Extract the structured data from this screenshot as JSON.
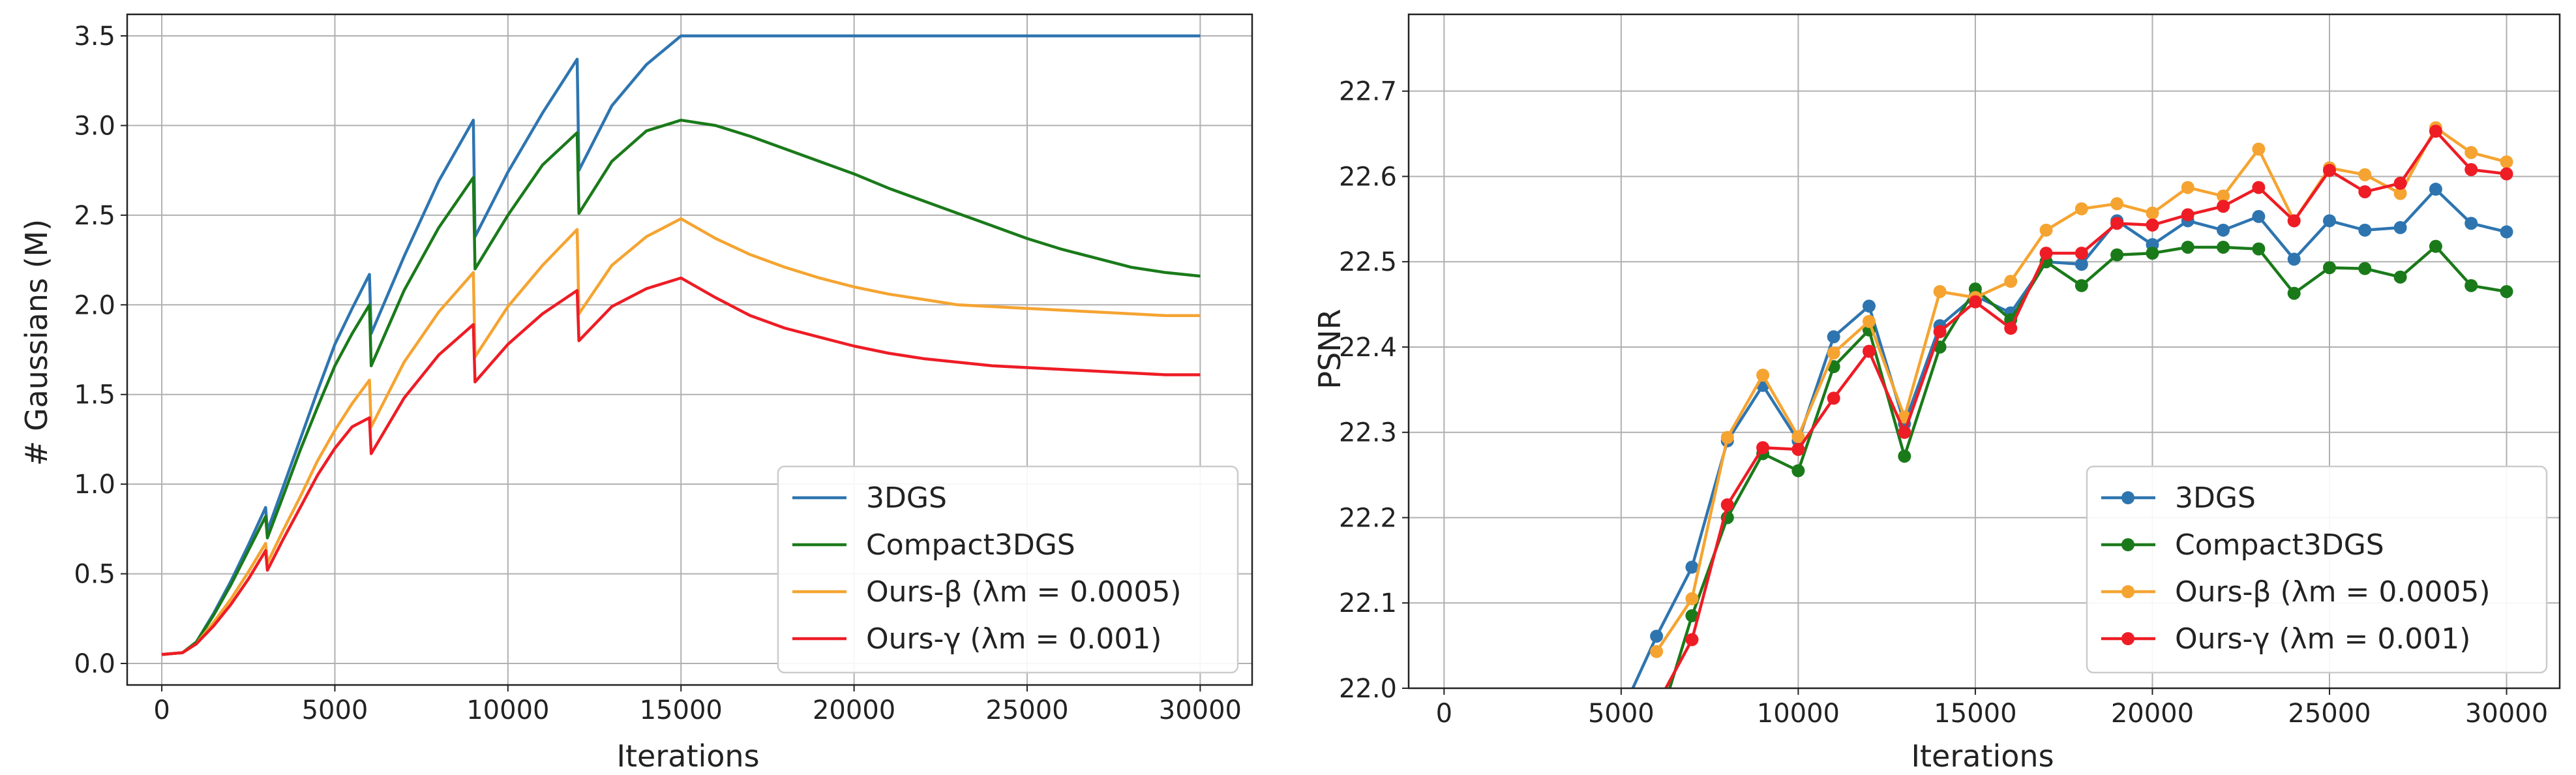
{
  "chart_data": [
    {
      "type": "line",
      "xlabel": "Iterations",
      "ylabel": "# Gaussians (M)",
      "xlim": [
        -1000,
        31500
      ],
      "ylim": [
        -0.12,
        3.62
      ],
      "xticks": [
        0,
        5000,
        10000,
        15000,
        20000,
        25000,
        30000
      ],
      "xtick_labels": [
        "0",
        "5000",
        "10000",
        "15000",
        "20000",
        "25000",
        "30000"
      ],
      "yticks": [
        0.0,
        0.5,
        1.0,
        1.5,
        2.0,
        2.5,
        3.0,
        3.5
      ],
      "ytick_labels": [
        "0.0",
        "0.5",
        "1.0",
        "1.5",
        "2.0",
        "2.5",
        "3.0",
        "3.5"
      ],
      "grid": true,
      "legend_position": "lower-right",
      "series": [
        {
          "name": "3DGS",
          "color": "#2e75b0",
          "x": [
            0,
            600,
            1000,
            1500,
            2000,
            2500,
            3000,
            3050,
            3500,
            4000,
            4500,
            5000,
            5500,
            6000,
            6050,
            7000,
            8000,
            9000,
            9050,
            10000,
            11000,
            12000,
            12050,
            13000,
            14000,
            15000,
            20000,
            25000,
            30000
          ],
          "y": [
            0.05,
            0.06,
            0.12,
            0.28,
            0.46,
            0.66,
            0.87,
            0.74,
            0.98,
            1.25,
            1.52,
            1.78,
            1.98,
            2.17,
            1.84,
            2.27,
            2.69,
            3.03,
            2.38,
            2.74,
            3.07,
            3.37,
            2.75,
            3.11,
            3.34,
            3.5,
            3.5,
            3.5,
            3.5
          ]
        },
        {
          "name": "Compact3DGS",
          "color": "#1a7a1a",
          "x": [
            0,
            600,
            1000,
            1500,
            2000,
            2500,
            3000,
            3050,
            3500,
            4000,
            4500,
            5000,
            5500,
            6000,
            6050,
            7000,
            8000,
            9000,
            9050,
            10000,
            11000,
            12000,
            12050,
            13000,
            14000,
            15000,
            16000,
            17000,
            18000,
            19000,
            20000,
            21000,
            22000,
            23000,
            24000,
            25000,
            26000,
            27000,
            28000,
            29000,
            30000
          ],
          "y": [
            0.05,
            0.06,
            0.12,
            0.27,
            0.44,
            0.63,
            0.82,
            0.7,
            0.93,
            1.19,
            1.43,
            1.66,
            1.84,
            2.0,
            1.66,
            2.08,
            2.43,
            2.71,
            2.2,
            2.5,
            2.78,
            2.96,
            2.51,
            2.8,
            2.97,
            3.03,
            3.0,
            2.94,
            2.87,
            2.8,
            2.73,
            2.65,
            2.58,
            2.51,
            2.44,
            2.37,
            2.31,
            2.26,
            2.21,
            2.18,
            2.16
          ]
        },
        {
          "name": "Ours-β (λm = 0.0005)",
          "color": "#f5a431",
          "x": [
            0,
            600,
            1000,
            1500,
            2000,
            2500,
            3000,
            3050,
            3500,
            4000,
            4500,
            5000,
            5500,
            6000,
            6050,
            7000,
            8000,
            9000,
            9050,
            10000,
            11000,
            12000,
            12050,
            13000,
            14000,
            15000,
            16000,
            17000,
            18000,
            19000,
            20000,
            21000,
            22000,
            23000,
            24000,
            25000,
            26000,
            27000,
            28000,
            29000,
            30000
          ],
          "y": [
            0.05,
            0.06,
            0.11,
            0.23,
            0.36,
            0.51,
            0.67,
            0.56,
            0.74,
            0.93,
            1.13,
            1.3,
            1.45,
            1.58,
            1.32,
            1.68,
            1.96,
            2.18,
            1.71,
            1.99,
            2.22,
            2.42,
            1.95,
            2.22,
            2.38,
            2.48,
            2.37,
            2.28,
            2.21,
            2.15,
            2.1,
            2.06,
            2.03,
            2.0,
            1.99,
            1.98,
            1.97,
            1.96,
            1.95,
            1.94,
            1.94
          ]
        },
        {
          "name": "Ours-γ (λm = 0.001)",
          "color": "#ee1c25",
          "x": [
            0,
            600,
            1000,
            1500,
            2000,
            2500,
            3000,
            3050,
            3500,
            4000,
            4500,
            5000,
            5500,
            6000,
            6050,
            7000,
            8000,
            9000,
            9050,
            10000,
            11000,
            12000,
            12050,
            13000,
            14000,
            15000,
            16000,
            17000,
            18000,
            19000,
            20000,
            21000,
            22000,
            23000,
            24000,
            25000,
            26000,
            27000,
            28000,
            29000,
            30000
          ],
          "y": [
            0.05,
            0.06,
            0.11,
            0.21,
            0.33,
            0.47,
            0.63,
            0.52,
            0.69,
            0.87,
            1.05,
            1.2,
            1.32,
            1.37,
            1.17,
            1.48,
            1.72,
            1.89,
            1.57,
            1.78,
            1.95,
            2.08,
            1.8,
            1.99,
            2.09,
            2.15,
            2.04,
            1.94,
            1.87,
            1.82,
            1.77,
            1.73,
            1.7,
            1.68,
            1.66,
            1.65,
            1.64,
            1.63,
            1.62,
            1.61,
            1.61
          ]
        }
      ]
    },
    {
      "type": "line",
      "xlabel": "Iterations",
      "ylabel": "PSNR",
      "xlim": [
        -1000,
        31500
      ],
      "ylim": [
        22.0,
        22.79
      ],
      "xticks": [
        0,
        5000,
        10000,
        15000,
        20000,
        25000,
        30000
      ],
      "xtick_labels": [
        "0",
        "5000",
        "10000",
        "15000",
        "20000",
        "25000",
        "30000"
      ],
      "yticks": [
        22.0,
        22.1,
        22.2,
        22.3,
        22.4,
        22.5,
        22.6,
        22.7
      ],
      "ytick_labels": [
        "22.0",
        "22.1",
        "22.2",
        "22.3",
        "22.4",
        "22.5",
        "22.6",
        "22.7"
      ],
      "grid": true,
      "legend_position": "lower-right",
      "markers": true,
      "series": [
        {
          "name": "3DGS",
          "color": "#2e75b0",
          "x": [
            5000,
            6000,
            7000,
            8000,
            9000,
            10000,
            11000,
            12000,
            13000,
            14000,
            15000,
            16000,
            17000,
            18000,
            19000,
            20000,
            21000,
            22000,
            23000,
            24000,
            25000,
            26000,
            27000,
            28000,
            29000,
            30000
          ],
          "y": [
            21.97,
            22.061,
            22.142,
            22.29,
            22.355,
            22.29,
            22.412,
            22.448,
            22.31,
            22.425,
            22.46,
            22.44,
            22.5,
            22.497,
            22.548,
            22.52,
            22.548,
            22.537,
            22.553,
            22.503,
            22.548,
            22.537,
            22.54,
            22.585,
            22.545,
            22.535
          ]
        },
        {
          "name": "Compact3DGS",
          "color": "#1a7a1a",
          "x": [
            6000,
            7000,
            8000,
            9000,
            10000,
            11000,
            12000,
            13000,
            14000,
            15000,
            16000,
            17000,
            18000,
            19000,
            20000,
            21000,
            22000,
            23000,
            24000,
            25000,
            26000,
            27000,
            28000,
            29000,
            30000
          ],
          "y": [
            21.95,
            22.085,
            22.2,
            22.275,
            22.255,
            22.377,
            22.42,
            22.272,
            22.4,
            22.468,
            22.432,
            22.5,
            22.472,
            22.508,
            22.51,
            22.517,
            22.517,
            22.515,
            22.463,
            22.493,
            22.492,
            22.482,
            22.518,
            22.472,
            22.465
          ]
        },
        {
          "name": "Ours-β (λm = 0.0005)",
          "color": "#f5a431",
          "x": [
            6000,
            7000,
            8000,
            9000,
            10000,
            11000,
            12000,
            13000,
            14000,
            15000,
            16000,
            17000,
            18000,
            19000,
            20000,
            21000,
            22000,
            23000,
            24000,
            25000,
            26000,
            27000,
            28000,
            29000,
            30000
          ],
          "y": [
            22.043,
            22.105,
            22.294,
            22.367,
            22.295,
            22.393,
            22.43,
            22.318,
            22.465,
            22.458,
            22.477,
            22.537,
            22.562,
            22.568,
            22.557,
            22.587,
            22.577,
            22.632,
            22.548,
            22.61,
            22.602,
            22.58,
            22.657,
            22.628,
            22.617
          ]
        },
        {
          "name": "Ours-γ (λm = 0.001)",
          "color": "#ee1c25",
          "x": [
            6000,
            7000,
            8000,
            9000,
            10000,
            11000,
            12000,
            13000,
            14000,
            15000,
            16000,
            17000,
            18000,
            19000,
            20000,
            21000,
            22000,
            23000,
            24000,
            25000,
            26000,
            27000,
            28000,
            29000,
            30000
          ],
          "y": [
            21.98,
            22.057,
            22.215,
            22.282,
            22.28,
            22.34,
            22.395,
            22.3,
            22.418,
            22.453,
            22.422,
            22.51,
            22.51,
            22.545,
            22.543,
            22.555,
            22.565,
            22.587,
            22.548,
            22.607,
            22.582,
            22.592,
            22.653,
            22.608,
            22.603
          ]
        }
      ]
    }
  ]
}
